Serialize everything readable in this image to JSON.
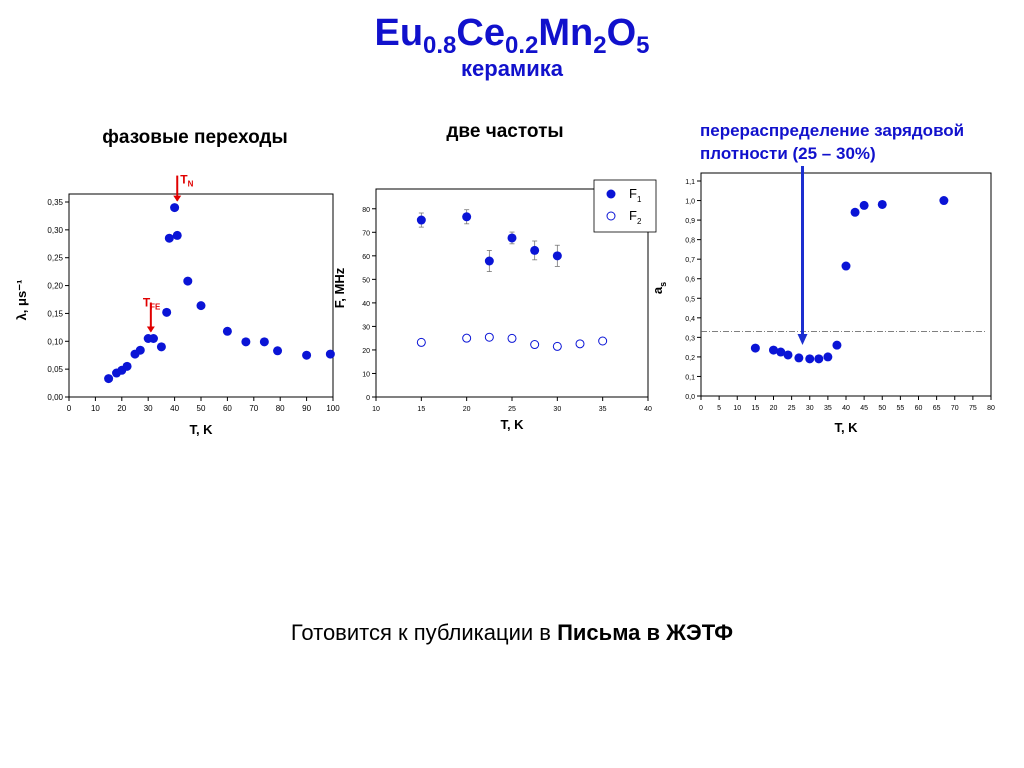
{
  "header": {
    "title_parts": [
      {
        "t": "Eu",
        "s": "0.8"
      },
      {
        "t": "Ce",
        "s": "0.2"
      },
      {
        "t": "Mn",
        "s": "2"
      },
      {
        "t": "O",
        "s": "5"
      }
    ],
    "subtitle": "керамика"
  },
  "sections": {
    "phase": "фазовые переходы",
    "freq": "две частоты",
    "charge_line1": "перераспределение зарядовой",
    "charge_line2": "плотности (25 – 30%)"
  },
  "footer": {
    "prefix": "Готовится к публикации в ",
    "journal": "Письма в ЖЭТФ"
  },
  "colors": {
    "marker": "#0a14d6",
    "accent_text": "#1111cc",
    "annotation": "#e00000",
    "arrow": "#1c2fd0"
  },
  "chart_data": [
    {
      "type": "scatter",
      "xlabel": "T, K",
      "ylabel": "λ, μs⁻¹",
      "xlim": [
        0,
        100
      ],
      "ylim": [
        0,
        0.35
      ],
      "xticks": [
        "0",
        "10",
        "20",
        "30",
        "40",
        "50",
        "60",
        "70",
        "80",
        "90",
        "100"
      ],
      "yticks": [
        "0,00",
        "0,05",
        "0,10",
        "0,15",
        "0,20",
        "0,25",
        "0,30",
        "0,35"
      ],
      "series": [
        {
          "points": [
            [
              15,
              0.033
            ],
            [
              18,
              0.043
            ],
            [
              20,
              0.048
            ],
            [
              22,
              0.055
            ],
            [
              25,
              0.077
            ],
            [
              27,
              0.084
            ],
            [
              30,
              0.105
            ],
            [
              32,
              0.105
            ],
            [
              35,
              0.09
            ],
            [
              37,
              0.152
            ],
            [
              38,
              0.285
            ],
            [
              40,
              0.34
            ],
            [
              41,
              0.29
            ],
            [
              45,
              0.208
            ],
            [
              50,
              0.164
            ],
            [
              60,
              0.118
            ],
            [
              67,
              0.099
            ],
            [
              74,
              0.099
            ],
            [
              79,
              0.083
            ],
            [
              90,
              0.075
            ],
            [
              99,
              0.077
            ]
          ]
        }
      ],
      "annotations": [
        {
          "label": "T",
          "sub": "N",
          "x": 41,
          "y": 0.34
        },
        {
          "label": "T",
          "sub": "FE",
          "x": 31,
          "y": 0.105
        }
      ]
    },
    {
      "type": "scatter",
      "xlabel": "T, K",
      "ylabel": "F, MHz",
      "xlim": [
        10,
        40
      ],
      "ylim": [
        0,
        85
      ],
      "xticks": [
        "10",
        "15",
        "20",
        "25",
        "30",
        "35",
        "40"
      ],
      "yticks": [
        "0",
        "10",
        "20",
        "30",
        "40",
        "50",
        "60",
        "70",
        "80"
      ],
      "legend": "top-right",
      "series": [
        {
          "name": "F",
          "sub": "1",
          "filled": true,
          "points": [
            [
              15,
              75.2
            ],
            [
              20,
              76.6
            ],
            [
              22.5,
              57.8
            ],
            [
              25,
              67.6
            ],
            [
              27.5,
              62.3
            ],
            [
              30,
              60.0
            ]
          ],
          "errors": [
            3.0,
            3.0,
            4.5,
            2.5,
            4.0,
            4.5
          ]
        },
        {
          "name": "F",
          "sub": "2",
          "filled": false,
          "points": [
            [
              15,
              23.2
            ],
            [
              20,
              25.0
            ],
            [
              22.5,
              25.4
            ],
            [
              25,
              24.9
            ],
            [
              27.5,
              22.3
            ],
            [
              30,
              21.5
            ],
            [
              32.5,
              22.6
            ],
            [
              35,
              23.8
            ]
          ]
        }
      ]
    },
    {
      "type": "scatter",
      "xlabel": "T, K",
      "ylabel": "a",
      "ylabel_sub": "s",
      "xlim": [
        0,
        80
      ],
      "ylim": [
        0,
        1.1
      ],
      "xticks": [
        "0",
        "5",
        "10",
        "15",
        "20",
        "25",
        "30",
        "35",
        "40",
        "45",
        "50",
        "55",
        "60",
        "65",
        "70",
        "75",
        "80"
      ],
      "yticks": [
        "0,0",
        "0,1",
        "0,2",
        "0,3",
        "0,4",
        "0,5",
        "0,6",
        "0,7",
        "0,8",
        "0,9",
        "1,0",
        "1,1"
      ],
      "reference_line_y": 0.33,
      "arrow_x": 28,
      "series": [
        {
          "points": [
            [
              15,
              0.245
            ],
            [
              20,
              0.235
            ],
            [
              22,
              0.225
            ],
            [
              24,
              0.21
            ],
            [
              27,
              0.195
            ],
            [
              30,
              0.19
            ],
            [
              32.5,
              0.19
            ],
            [
              35,
              0.2
            ],
            [
              37.5,
              0.26
            ],
            [
              40,
              0.665
            ],
            [
              42.5,
              0.94
            ],
            [
              45,
              0.975
            ],
            [
              50,
              0.98
            ],
            [
              67,
              1.0
            ]
          ]
        }
      ]
    }
  ]
}
